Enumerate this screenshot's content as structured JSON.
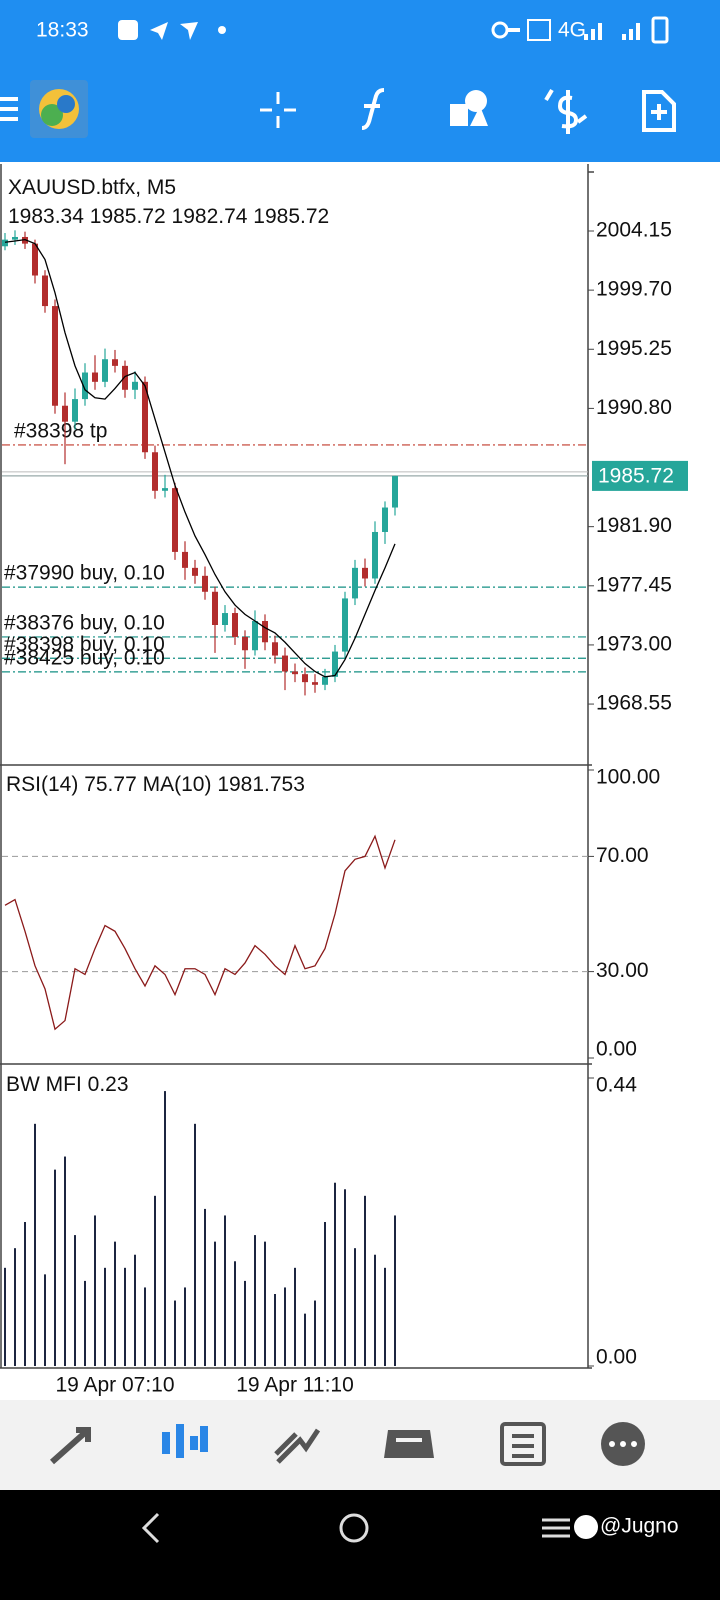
{
  "status_bar": {
    "time": "18:33",
    "network": "4G"
  },
  "nav_bar": {
    "watermark": "@Jugno"
  },
  "chart_data": [
    {
      "type": "candlestick",
      "title": "XAUUSD.btfx, M5",
      "categories": [
        null,
        null,
        null,
        null,
        null,
        null,
        null,
        null,
        null,
        null,
        null,
        "19 Apr 07:10",
        null,
        null,
        null,
        null,
        null,
        null,
        null,
        null,
        null,
        null,
        null,
        null,
        null,
        null,
        null,
        null,
        null,
        "19 Apr 11:10",
        null,
        null,
        null,
        null,
        null,
        null,
        null,
        null,
        null,
        null
      ],
      "candles": [
        [
          2003.0,
          2004.0,
          2002.7,
          2003.5
        ],
        [
          2003.5,
          2004.2,
          2003.1,
          2003.7
        ],
        [
          2003.7,
          2004.1,
          2002.8,
          2003.2
        ],
        [
          2003.2,
          2003.5,
          2000.2,
          2000.8
        ],
        [
          2000.8,
          2001.2,
          1998.0,
          1998.5
        ],
        [
          1998.5,
          1999.0,
          1990.4,
          1991.0
        ],
        [
          1991.0,
          1992.0,
          1986.6,
          1989.8
        ],
        [
          1989.8,
          1992.3,
          1989.2,
          1991.5
        ],
        [
          1991.5,
          1994.2,
          1991.0,
          1993.5
        ],
        [
          1993.5,
          1994.8,
          1992.2,
          1992.8
        ],
        [
          1992.8,
          1995.3,
          1992.4,
          1994.5
        ],
        [
          1994.5,
          1995.2,
          1993.5,
          1994.0
        ],
        [
          1994.0,
          1994.4,
          1991.6,
          1992.2
        ],
        [
          1992.2,
          1993.6,
          1991.5,
          1992.8
        ],
        [
          1992.8,
          1993.2,
          1987.0,
          1987.5
        ],
        [
          1987.5,
          1988.0,
          1984.0,
          1984.6
        ],
        [
          1984.6,
          1985.8,
          1984.1,
          1984.8
        ],
        [
          1984.8,
          1985.2,
          1979.4,
          1980.0
        ],
        [
          1980.0,
          1980.8,
          1977.9,
          1978.8
        ],
        [
          1978.8,
          1979.4,
          1977.6,
          1978.2
        ],
        [
          1978.2,
          1978.9,
          1976.4,
          1977.0
        ],
        [
          1977.0,
          1977.4,
          1972.4,
          1974.5
        ],
        [
          1974.5,
          1976.0,
          1974.0,
          1975.4
        ],
        [
          1975.4,
          1975.8,
          1973.0,
          1973.6
        ],
        [
          1973.6,
          1974.1,
          1971.2,
          1972.6
        ],
        [
          1972.6,
          1975.6,
          1972.2,
          1974.8
        ],
        [
          1974.8,
          1975.3,
          1972.6,
          1973.2
        ],
        [
          1973.2,
          1973.7,
          1971.6,
          1972.2
        ],
        [
          1972.2,
          1972.8,
          1969.6,
          1971.0
        ],
        [
          1971.0,
          1971.6,
          1970.2,
          1970.8
        ],
        [
          1970.8,
          1971.3,
          1969.2,
          1970.2
        ],
        [
          1970.2,
          1970.8,
          1969.4,
          1970.0
        ],
        [
          1970.0,
          1971.2,
          1969.6,
          1970.6
        ],
        [
          1970.6,
          1973.0,
          1970.2,
          1972.5
        ],
        [
          1972.5,
          1977.0,
          1972.0,
          1976.5
        ],
        [
          1976.5,
          1979.4,
          1976.0,
          1978.8
        ],
        [
          1978.8,
          1979.5,
          1977.4,
          1978.0
        ],
        [
          1978.0,
          1982.3,
          1977.6,
          1981.5
        ],
        [
          1981.5,
          1983.8,
          1980.6,
          1983.34
        ],
        [
          1983.34,
          1985.72,
          1982.74,
          1985.72
        ]
      ],
      "up_color": "#26a69a",
      "down_color": "#b22d2d",
      "price_label_color": "#26a69a",
      "ma": {
        "color": "#000000",
        "values": [
          2003.3,
          2003.4,
          2003.5,
          2003.2,
          2002.0,
          1999.5,
          1996.5,
          1994.0,
          1992.2,
          1991.6,
          1991.5,
          1992.3,
          1993.2,
          1993.5,
          1992.5,
          1990.0,
          1987.5,
          1985.0,
          1983.0,
          1981.2,
          1979.8,
          1978.3,
          1977.0,
          1976.0,
          1975.3,
          1974.8,
          1974.3,
          1973.9,
          1973.2,
          1972.4,
          1971.6,
          1971.0,
          1970.6,
          1970.7,
          1971.9,
          1973.5,
          1975.3,
          1977.1,
          1978.8,
          1980.6
        ]
      },
      "orders": [
        {
          "label": "#38398 tp",
          "price": 1988.05,
          "color": "#c0392b"
        },
        {
          "label": "#37990 buy, 0.10",
          "price": 1977.35,
          "color": "#138f83"
        },
        {
          "label": "#38376 buy, 0.10",
          "price": 1973.6,
          "color": "#138f83"
        },
        {
          "label": "#38398 buy, 0.10",
          "price": 1972.0,
          "color": "#138f83"
        },
        {
          "label": "#38425 buy, 0.10",
          "price": 1970.97,
          "color": "#138f83"
        }
      ],
      "ylim": [
        1964.19,
        2008.74
      ],
      "yticks": [
        2004.15,
        {
          "value": 1999.7,
          "label": "1999.70"
        },
        1995.25,
        {
          "value": 1990.8,
          "label": "1990.80"
        },
        {
          "value": 1981.9,
          "label": "1981.90"
        },
        1977.45,
        {
          "value": 1973,
          "label": "1973.00"
        },
        1968.55
      ],
      "grid": false
    },
    {
      "type": "line",
      "title": "RSI(14)",
      "ma_label": "MA(10)",
      "ma_value": 1981.753,
      "color": "#8b1a1a",
      "values": [
        53,
        55,
        44,
        32,
        24,
        10,
        13,
        31,
        29,
        38,
        46,
        44,
        38,
        31,
        25,
        32,
        29,
        22,
        31,
        31,
        29,
        22,
        31,
        29,
        33,
        39,
        36,
        32,
        29,
        39,
        31,
        32,
        38,
        50,
        65,
        69,
        70,
        77,
        66,
        75.77
      ],
      "ylim": [
        0,
        100
      ],
      "yticks": [
        {
          "value": 100,
          "label": "100.00"
        },
        {
          "value": 70,
          "label": "70.00"
        },
        {
          "value": 30,
          "label": "30.00"
        },
        {
          "value": 0,
          "label": "0.00"
        }
      ],
      "grid": true
    },
    {
      "type": "bar",
      "title": "BW MFI",
      "color": "#1c2540",
      "values": [
        0.15,
        0.18,
        0.22,
        0.37,
        0.14,
        0.3,
        0.32,
        0.2,
        0.13,
        0.23,
        0.15,
        0.19,
        0.15,
        0.17,
        0.12,
        0.26,
        0.42,
        0.1,
        0.12,
        0.37,
        0.24,
        0.19,
        0.23,
        0.16,
        0.13,
        0.2,
        0.19,
        0.11,
        0.12,
        0.15,
        0.08,
        0.1,
        0.22,
        0.28,
        0.27,
        0.18,
        0.26,
        0.17,
        0.15,
        0.23
      ],
      "ylim": [
        0,
        0.44
      ],
      "yticks": [
        {
          "value": 0,
          "label": "0.00"
        },
        0.44
      ],
      "grid": false
    }
  ]
}
